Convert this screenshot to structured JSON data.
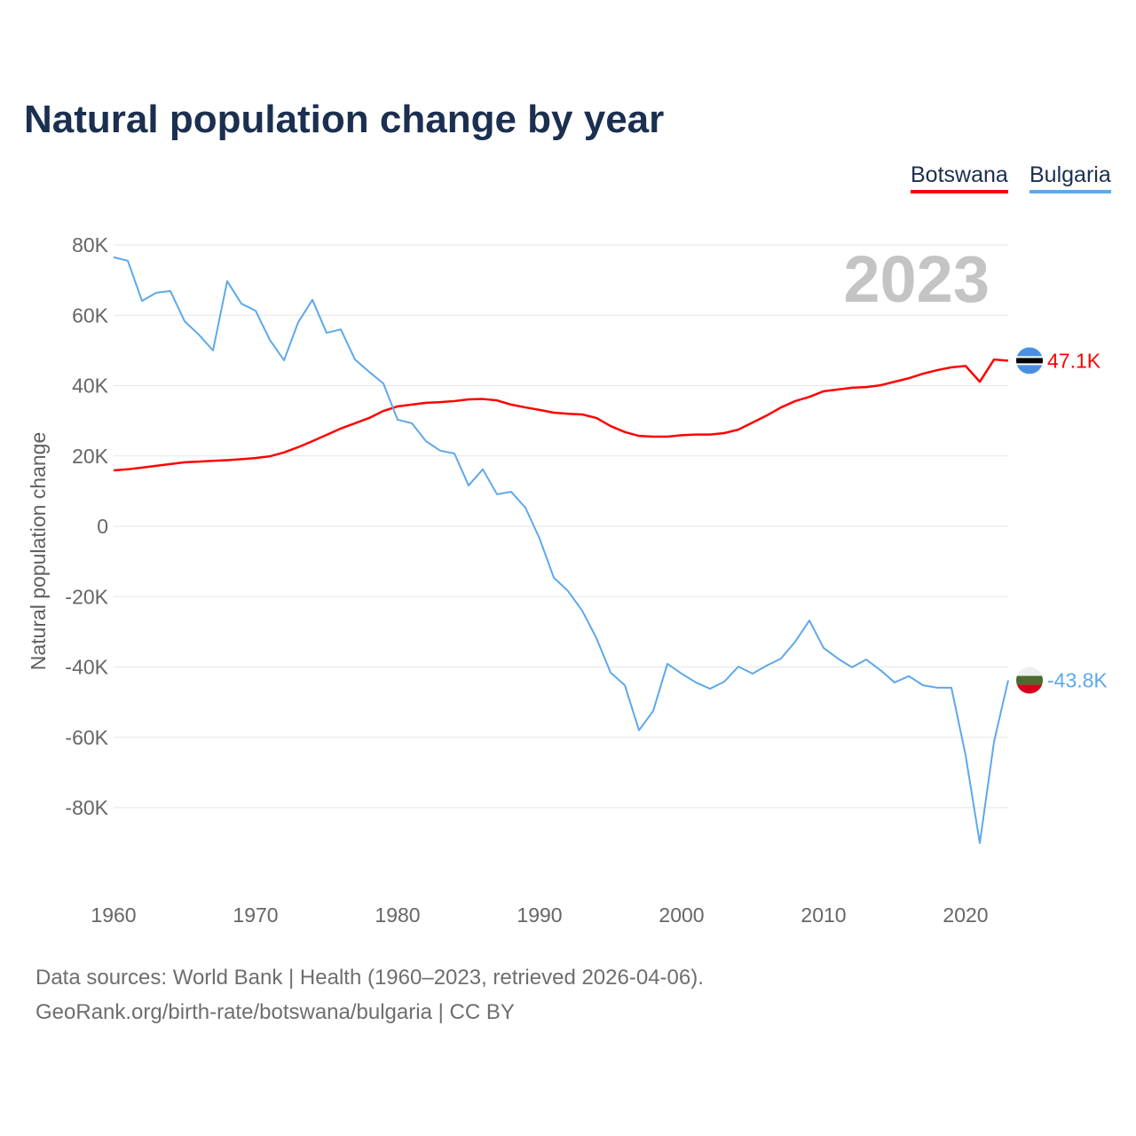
{
  "chart_data": {
    "type": "line",
    "title": "Natural population change by year",
    "xlabel": "",
    "ylabel": "Natural population change",
    "ylim": [
      -100000,
      80000
    ],
    "xlim": [
      1960,
      2023
    ],
    "yticks": [
      80000,
      60000,
      40000,
      20000,
      0,
      -20000,
      -40000,
      -60000,
      -80000
    ],
    "ytick_labels": [
      "80K",
      "60K",
      "40K",
      "20K",
      "0",
      "-20K",
      "-40K",
      "-60K",
      "-80K"
    ],
    "xticks": [
      1960,
      1970,
      1980,
      1990,
      2000,
      2010,
      2020
    ],
    "xtick_labels": [
      "1960",
      "1970",
      "1980",
      "1990",
      "2000",
      "2010",
      "2020"
    ],
    "grid": true,
    "legend_position": "top-right",
    "year_label": "2023",
    "x": [
      1960,
      1961,
      1962,
      1963,
      1964,
      1965,
      1966,
      1967,
      1968,
      1969,
      1970,
      1971,
      1972,
      1973,
      1974,
      1975,
      1976,
      1977,
      1978,
      1979,
      1980,
      1981,
      1982,
      1983,
      1984,
      1985,
      1986,
      1987,
      1988,
      1989,
      1990,
      1991,
      1992,
      1993,
      1994,
      1995,
      1996,
      1997,
      1998,
      1999,
      2000,
      2001,
      2002,
      2003,
      2004,
      2005,
      2006,
      2007,
      2008,
      2009,
      2010,
      2011,
      2012,
      2013,
      2014,
      2015,
      2016,
      2017,
      2018,
      2019,
      2020,
      2021,
      2022,
      2023
    ],
    "series": [
      {
        "name": "Botswana",
        "color": "#ff0000",
        "end_label": "47.1K",
        "flag": "botswana-flag",
        "values": [
          15900,
          16200,
          16700,
          17200,
          17700,
          18200,
          18400,
          18600,
          18800,
          19100,
          19400,
          19900,
          21000,
          22500,
          24200,
          26000,
          27800,
          29300,
          30800,
          32800,
          34100,
          34600,
          35100,
          35300,
          35600,
          36100,
          36200,
          35800,
          34600,
          33800,
          33100,
          32300,
          32000,
          31800,
          30800,
          28500,
          26800,
          25700,
          25500,
          25500,
          25900,
          26100,
          26100,
          26500,
          27500,
          29500,
          31500,
          33800,
          35600,
          36800,
          38400,
          38900,
          39400,
          39600,
          40100,
          41100,
          42100,
          43400,
          44400,
          45200,
          45600,
          41100,
          47400,
          47100
        ]
      },
      {
        "name": "Bulgaria",
        "color": "#5ea8ea",
        "end_label": "-43.8K",
        "flag": "bulgaria-flag",
        "values": [
          76500,
          75500,
          64100,
          66400,
          66900,
          58300,
          54500,
          50000,
          69700,
          63300,
          61300,
          53000,
          47200,
          58000,
          64400,
          55000,
          56000,
          47400,
          43900,
          40600,
          30300,
          29300,
          24200,
          21500,
          20700,
          11600,
          16200,
          9100,
          9800,
          5300,
          -3500,
          -14600,
          -18400,
          -24000,
          -31800,
          -41600,
          -45200,
          -58000,
          -52500,
          -39100,
          -41900,
          -44400,
          -46200,
          -44200,
          -39900,
          -41900,
          -39600,
          -37600,
          -32800,
          -26800,
          -34600,
          -37600,
          -40100,
          -37900,
          -40900,
          -44400,
          -42600,
          -45200,
          -45900,
          -45900,
          -65100,
          -90100,
          -61300,
          -43800
        ]
      }
    ]
  },
  "footer": {
    "line1": "Data sources: World Bank | Health (1960–2023, retrieved 2026-04-06).",
    "line2": "GeoRank.org/birth-rate/botswana/bulgaria | CC BY"
  }
}
